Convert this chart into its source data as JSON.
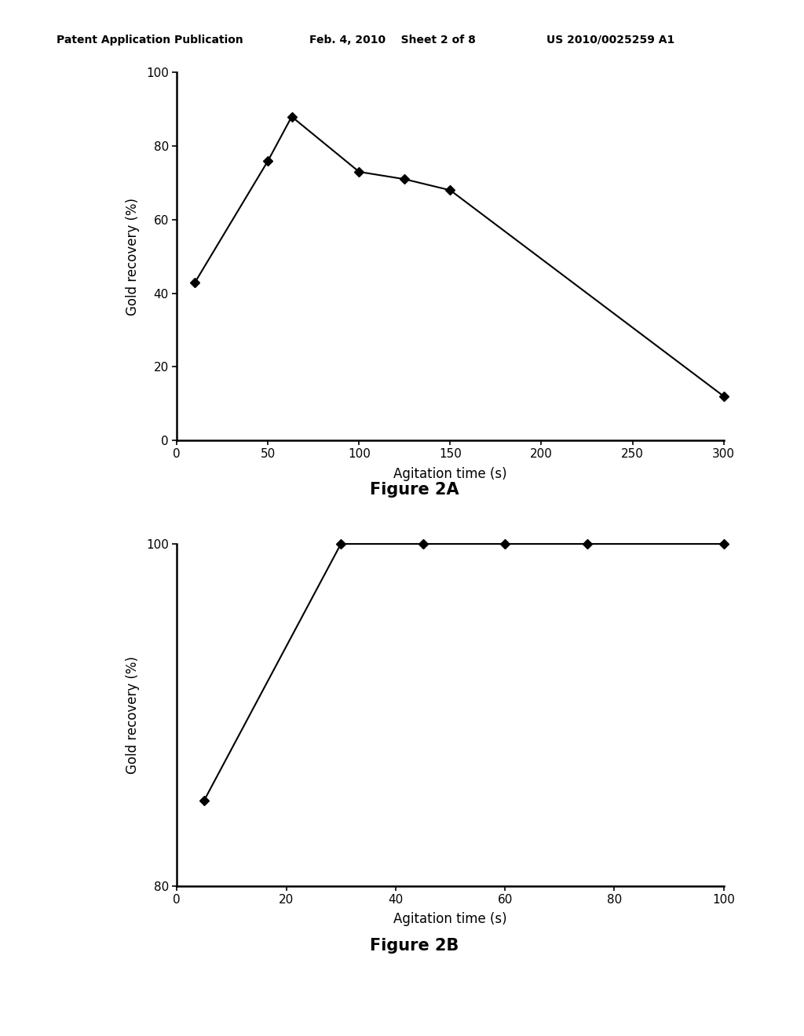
{
  "fig2a": {
    "x": [
      10,
      50,
      63,
      100,
      125,
      150,
      300
    ],
    "y": [
      43,
      76,
      88,
      73,
      71,
      68,
      12
    ],
    "xlabel": "Agitation time (s)",
    "ylabel": "Gold recovery (%)",
    "xlim": [
      0,
      300
    ],
    "ylim": [
      0,
      100
    ],
    "xticks": [
      0,
      50,
      100,
      150,
      200,
      250,
      300
    ],
    "yticks": [
      0,
      20,
      40,
      60,
      80,
      100
    ],
    "caption": "Figure 2A"
  },
  "fig2b": {
    "x": [
      5,
      30,
      45,
      60,
      75,
      100
    ],
    "y": [
      85,
      100,
      100,
      100,
      100,
      100
    ],
    "xlabel": "Agitation time (s)",
    "ylabel": "Gold recovery (%)",
    "xlim": [
      0,
      100
    ],
    "ylim": [
      80,
      100
    ],
    "xticks": [
      0,
      20,
      40,
      60,
      80,
      100
    ],
    "yticks": [
      80,
      100
    ],
    "caption": "Figure 2B"
  },
  "header_left": "Patent Application Publication",
  "header_center": "Feb. 4, 2010    Sheet 2 of 8",
  "header_right": "US 2010/0025259 A1",
  "bg_color": "#ffffff",
  "line_color": "#000000",
  "marker": "D",
  "marker_size": 6,
  "line_width": 1.5,
  "tick_fontsize": 11,
  "label_fontsize": 12,
  "caption_fontsize": 15
}
